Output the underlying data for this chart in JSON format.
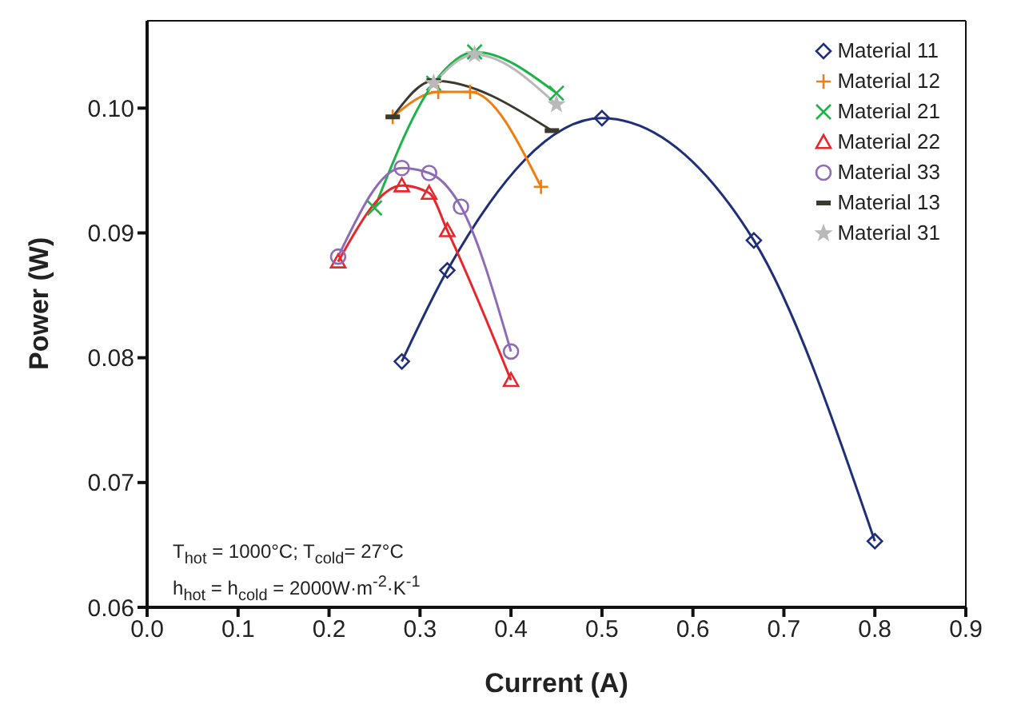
{
  "chart_data": {
    "type": "line",
    "xlabel": "Current (A)",
    "ylabel": "Power (W)",
    "xlim": [
      0,
      0.9
    ],
    "xticks": [
      {
        "value": 0,
        "label": "0.0"
      },
      0.1,
      0.2,
      0.3,
      0.4,
      0.5,
      0.6,
      0.7,
      0.8,
      0.9
    ],
    "ylim": [
      0.06,
      0.107
    ],
    "yticks": [
      {
        "value": 0.06,
        "label": "0.06"
      },
      {
        "value": 0.07,
        "label": "0.07"
      },
      {
        "value": 0.08,
        "label": "0.08"
      },
      {
        "value": 0.09,
        "label": "0.09"
      },
      {
        "value": 0.1,
        "label": "0.10"
      }
    ],
    "grid": false,
    "legend": "top right",
    "annotations": [
      "T$_{hot}$ = 1000°C; T$_{cold}$= 27°C",
      "h$_{hot}$ = h$_{cold}$ = 2000W·m$^{-2}$·K$^{-1}$"
    ],
    "series": [
      {
        "name": "Material 11",
        "color": "#1f2f78",
        "marker": "diamond",
        "x": [
          0.28,
          0.33,
          0.5,
          0.667,
          0.8
        ],
        "values": [
          0.0797,
          0.087,
          0.0992,
          0.0894,
          0.0653
        ]
      },
      {
        "name": "Material 12",
        "color": "#f07d12",
        "marker": "cross",
        "x": [
          0.27,
          0.32,
          0.355,
          0.433
        ],
        "values": [
          0.0993,
          0.1013,
          0.1013,
          0.0937
        ]
      },
      {
        "name": "Material 21",
        "color": "#1db34a",
        "marker": "x",
        "x": [
          0.25,
          0.315,
          0.36,
          0.45
        ],
        "values": [
          0.092,
          0.102,
          0.1045,
          0.1012
        ]
      },
      {
        "name": "Material 22",
        "color": "#e8262b",
        "marker": "triangle",
        "x": [
          0.21,
          0.28,
          0.31,
          0.33,
          0.4
        ],
        "values": [
          0.0877,
          0.0938,
          0.0932,
          0.0902,
          0.0782
        ]
      },
      {
        "name": "Material 33",
        "color": "#8e6bb5",
        "marker": "circle",
        "x": [
          0.21,
          0.28,
          0.31,
          0.345,
          0.4
        ],
        "values": [
          0.0881,
          0.0952,
          0.0948,
          0.0921,
          0.0805
        ]
      },
      {
        "name": "Material 13",
        "color": "#3a3a2e",
        "marker": "square",
        "x": [
          0.27,
          0.315,
          0.445
        ],
        "values": [
          0.0993,
          0.1022,
          0.0982
        ]
      },
      {
        "name": "Material 31",
        "color": "#b9b9b9",
        "marker": "star",
        "x": [
          0.315,
          0.36,
          0.45
        ],
        "values": [
          0.102,
          0.1043,
          0.1003
        ]
      }
    ]
  }
}
